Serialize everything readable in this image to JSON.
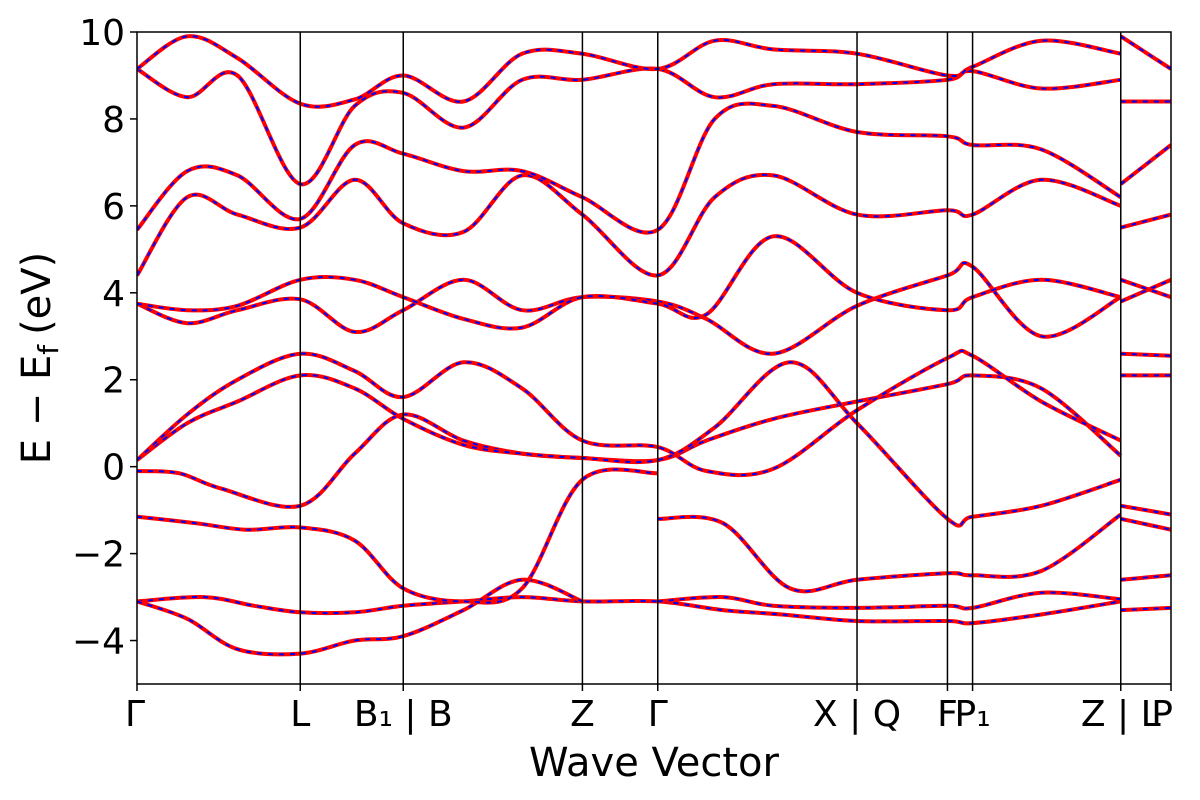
{
  "chart_data": {
    "type": "line",
    "xlabel": "Wave Vector",
    "ylabel_parts": {
      "main": "E − E",
      "sub": "f",
      "unit": "(eV)"
    },
    "ylim": [
      -5,
      10
    ],
    "yticks": [
      {
        "value": -4,
        "label": "−4"
      },
      {
        "value": -2,
        "label": "−2"
      },
      {
        "value": 0,
        "label": "0"
      },
      {
        "value": 2,
        "label": "2"
      },
      {
        "value": 4,
        "label": "4"
      },
      {
        "value": 6,
        "label": "6"
      },
      {
        "value": 8,
        "label": "8"
      },
      {
        "value": 10,
        "label": "10"
      }
    ],
    "grid": false,
    "kpoints": [
      {
        "position": 0.0,
        "label": "Γ"
      },
      {
        "position": 1.95,
        "label": "L"
      },
      {
        "position": 3.18,
        "label": "B₁ | B"
      },
      {
        "position": 5.32,
        "label": "Z"
      },
      {
        "position": 6.22,
        "label": "Γ"
      },
      {
        "position": 8.6,
        "label": "X | Q"
      },
      {
        "position": 9.68,
        "label": "F"
      },
      {
        "position": 9.98,
        "label": "P₁"
      },
      {
        "position": 11.75,
        "label": "Z | L"
      },
      {
        "position": 12.35,
        "label": "P"
      }
    ],
    "xlim": [
      0,
      12.35
    ],
    "series": [
      {
        "style": "red-solid-blue-dashed",
        "color_solid": "#ff0000",
        "color_dashed": "#0000ff",
        "bands": [
          [
            [
              0,
              -3.1
            ],
            [
              0.8,
              -3.0
            ],
            [
              1.4,
              -3.2
            ],
            [
              1.95,
              -3.35
            ],
            [
              2.6,
              -3.35
            ],
            [
              3.18,
              -3.2
            ],
            [
              3.9,
              -3.1
            ],
            [
              4.6,
              -3.0
            ],
            [
              5.32,
              -3.1
            ],
            [
              6.22,
              -3.1
            ],
            [
              7.0,
              -3.3
            ],
            [
              7.7,
              -3.4
            ],
            [
              8.6,
              -3.55
            ],
            [
              9.68,
              -3.55
            ],
            [
              9.98,
              -3.6
            ],
            [
              10.8,
              -3.4
            ],
            [
              11.75,
              -3.1
            ]
          ],
          [
            [
              0,
              -3.1
            ],
            [
              0.6,
              -3.5
            ],
            [
              1.2,
              -4.2
            ],
            [
              1.95,
              -4.3
            ],
            [
              2.6,
              -4.0
            ],
            [
              3.18,
              -3.9
            ],
            [
              3.9,
              -3.3
            ],
            [
              4.6,
              -2.6
            ],
            [
              5.32,
              -3.1
            ]
          ],
          [
            [
              0,
              -1.15
            ],
            [
              0.7,
              -1.3
            ],
            [
              1.3,
              -1.45
            ],
            [
              1.95,
              -1.4
            ],
            [
              2.6,
              -1.7
            ],
            [
              3.18,
              -2.8
            ],
            [
              3.9,
              -3.1
            ],
            [
              4.6,
              -2.8
            ],
            [
              5.32,
              -0.3
            ],
            [
              6.22,
              -0.15
            ]
          ],
          [
            [
              0,
              -0.1
            ],
            [
              0.5,
              -0.15
            ],
            [
              1.0,
              -0.5
            ],
            [
              1.95,
              -0.9
            ],
            [
              2.6,
              0.3
            ],
            [
              3.18,
              1.2
            ],
            [
              3.9,
              0.6
            ],
            [
              4.6,
              0.3
            ],
            [
              5.32,
              0.2
            ],
            [
              6.22,
              0.15
            ],
            [
              6.8,
              0.6
            ],
            [
              7.6,
              1.1
            ],
            [
              8.6,
              1.5
            ],
            [
              9.68,
              1.9
            ],
            [
              9.98,
              2.1
            ],
            [
              10.8,
              1.8
            ],
            [
              11.75,
              0.25
            ]
          ],
          [
            [
              0,
              0.15
            ],
            [
              0.6,
              1.0
            ],
            [
              1.2,
              1.5
            ],
            [
              1.95,
              2.1
            ],
            [
              2.6,
              1.8
            ],
            [
              3.18,
              1.1
            ],
            [
              3.9,
              0.5
            ],
            [
              4.6,
              0.3
            ],
            [
              5.32,
              0.2
            ],
            [
              6.22,
              0.15
            ],
            [
              6.9,
              0.9
            ],
            [
              7.8,
              2.4
            ],
            [
              8.6,
              1.0
            ],
            [
              9.68,
              -1.2
            ],
            [
              9.98,
              -1.15
            ],
            [
              10.8,
              -0.9
            ],
            [
              11.75,
              -0.3
            ]
          ],
          [
            [
              0,
              0.15
            ],
            [
              0.6,
              1.2
            ],
            [
              1.2,
              2.0
            ],
            [
              1.95,
              2.6
            ],
            [
              2.6,
              2.2
            ],
            [
              3.18,
              1.6
            ],
            [
              3.9,
              2.4
            ],
            [
              4.6,
              1.8
            ],
            [
              5.32,
              0.6
            ],
            [
              6.22,
              0.45
            ],
            [
              6.8,
              -0.1
            ],
            [
              7.6,
              -0.05
            ],
            [
              8.6,
              1.3
            ],
            [
              9.68,
              2.5
            ],
            [
              9.98,
              2.55
            ],
            [
              10.8,
              1.5
            ],
            [
              11.75,
              0.6
            ]
          ],
          [
            [
              0,
              3.75
            ],
            [
              0.6,
              3.3
            ],
            [
              1.2,
              3.6
            ],
            [
              1.95,
              3.85
            ],
            [
              2.6,
              3.1
            ],
            [
              3.18,
              3.6
            ],
            [
              3.9,
              4.3
            ],
            [
              4.6,
              3.6
            ],
            [
              5.32,
              3.9
            ],
            [
              6.22,
              3.8
            ],
            [
              6.8,
              3.4
            ],
            [
              7.6,
              2.6
            ],
            [
              8.6,
              3.7
            ],
            [
              9.68,
              4.4
            ],
            [
              9.98,
              4.6
            ],
            [
              10.8,
              3.0
            ],
            [
              11.75,
              3.9
            ]
          ],
          [
            [
              0,
              3.75
            ],
            [
              0.6,
              3.6
            ],
            [
              1.2,
              3.7
            ],
            [
              1.95,
              4.3
            ],
            [
              2.6,
              4.3
            ],
            [
              3.18,
              3.9
            ],
            [
              3.9,
              3.4
            ],
            [
              4.6,
              3.2
            ],
            [
              5.32,
              3.9
            ],
            [
              6.22,
              3.75
            ],
            [
              6.8,
              3.5
            ],
            [
              7.6,
              5.3
            ],
            [
              8.6,
              4.0
            ],
            [
              9.68,
              3.6
            ],
            [
              9.98,
              3.9
            ],
            [
              10.8,
              4.3
            ],
            [
              11.75,
              3.9
            ]
          ],
          [
            [
              0,
              4.4
            ],
            [
              0.6,
              6.2
            ],
            [
              1.2,
              5.8
            ],
            [
              1.95,
              5.5
            ],
            [
              2.6,
              6.6
            ],
            [
              3.18,
              5.6
            ],
            [
              3.9,
              5.4
            ],
            [
              4.6,
              6.7
            ],
            [
              5.32,
              5.8
            ],
            [
              6.22,
              4.4
            ],
            [
              6.9,
              6.2
            ],
            [
              7.6,
              6.7
            ],
            [
              8.6,
              5.8
            ],
            [
              9.68,
              5.9
            ],
            [
              9.98,
              5.8
            ],
            [
              10.8,
              6.6
            ],
            [
              11.75,
              6.0
            ]
          ],
          [
            [
              0,
              5.45
            ],
            [
              0.6,
              6.8
            ],
            [
              1.2,
              6.7
            ],
            [
              1.95,
              5.7
            ],
            [
              2.6,
              7.4
            ],
            [
              3.18,
              7.2
            ],
            [
              3.9,
              6.8
            ],
            [
              4.6,
              6.8
            ],
            [
              5.32,
              6.2
            ],
            [
              6.22,
              5.45
            ],
            [
              6.9,
              8.0
            ],
            [
              7.6,
              8.3
            ],
            [
              8.6,
              7.7
            ],
            [
              9.68,
              7.6
            ],
            [
              9.98,
              7.4
            ],
            [
              10.8,
              7.3
            ],
            [
              11.75,
              6.2
            ]
          ],
          [
            [
              0,
              9.15
            ],
            [
              0.6,
              8.5
            ],
            [
              1.2,
              9.0
            ],
            [
              1.95,
              6.5
            ],
            [
              2.6,
              8.3
            ],
            [
              3.18,
              8.6
            ],
            [
              3.9,
              7.8
            ],
            [
              4.6,
              8.9
            ],
            [
              5.32,
              8.9
            ],
            [
              6.22,
              9.15
            ],
            [
              6.9,
              8.5
            ],
            [
              7.6,
              8.8
            ],
            [
              8.6,
              8.8
            ],
            [
              9.68,
              8.9
            ],
            [
              9.98,
              9.1
            ],
            [
              10.8,
              8.7
            ],
            [
              11.75,
              8.9
            ]
          ],
          [
            [
              0,
              9.15
            ],
            [
              0.6,
              9.9
            ],
            [
              1.2,
              9.4
            ],
            [
              1.95,
              8.35
            ],
            [
              2.6,
              8.45
            ],
            [
              3.18,
              9.0
            ],
            [
              3.9,
              8.4
            ],
            [
              4.6,
              9.5
            ],
            [
              5.32,
              9.5
            ],
            [
              6.22,
              9.15
            ],
            [
              6.9,
              9.8
            ],
            [
              7.6,
              9.6
            ],
            [
              8.6,
              9.5
            ],
            [
              9.68,
              9.0
            ],
            [
              9.98,
              9.2
            ],
            [
              10.8,
              9.8
            ],
            [
              11.75,
              9.5
            ]
          ],
          [
            [
              6.22,
              -3.1
            ],
            [
              7.0,
              -3.0
            ],
            [
              7.6,
              -3.2
            ],
            [
              8.6,
              -3.25
            ],
            [
              9.68,
              -3.2
            ],
            [
              9.98,
              -3.25
            ],
            [
              10.8,
              -2.9
            ],
            [
              11.75,
              -3.05
            ]
          ],
          [
            [
              6.22,
              -1.2
            ],
            [
              7.0,
              -1.3
            ],
            [
              7.8,
              -2.8
            ],
            [
              8.6,
              -2.6
            ],
            [
              9.68,
              -2.45
            ],
            [
              9.98,
              -2.5
            ],
            [
              10.8,
              -2.4
            ],
            [
              11.75,
              -1.1
            ]
          ],
          [
            [
              11.75,
              -0.9
            ],
            [
              12.35,
              -1.1
            ]
          ],
          [
            [
              11.75,
              -1.2
            ],
            [
              12.35,
              -1.45
            ]
          ],
          [
            [
              11.75,
              -2.6
            ],
            [
              12.35,
              -2.5
            ]
          ],
          [
            [
              11.75,
              -3.3
            ],
            [
              12.35,
              -3.25
            ]
          ],
          [
            [
              11.75,
              2.6
            ],
            [
              12.35,
              2.55
            ]
          ],
          [
            [
              11.75,
              2.1
            ],
            [
              12.35,
              2.1
            ]
          ],
          [
            [
              11.75,
              3.8
            ],
            [
              12.35,
              4.3
            ]
          ],
          [
            [
              11.75,
              4.3
            ],
            [
              12.35,
              3.9
            ]
          ],
          [
            [
              11.75,
              5.5
            ],
            [
              12.35,
              5.8
            ]
          ],
          [
            [
              11.75,
              6.5
            ],
            [
              12.35,
              7.4
            ]
          ],
          [
            [
              11.75,
              8.4
            ],
            [
              12.35,
              8.4
            ]
          ],
          [
            [
              11.75,
              9.9
            ],
            [
              12.35,
              9.15
            ]
          ]
        ]
      }
    ]
  }
}
